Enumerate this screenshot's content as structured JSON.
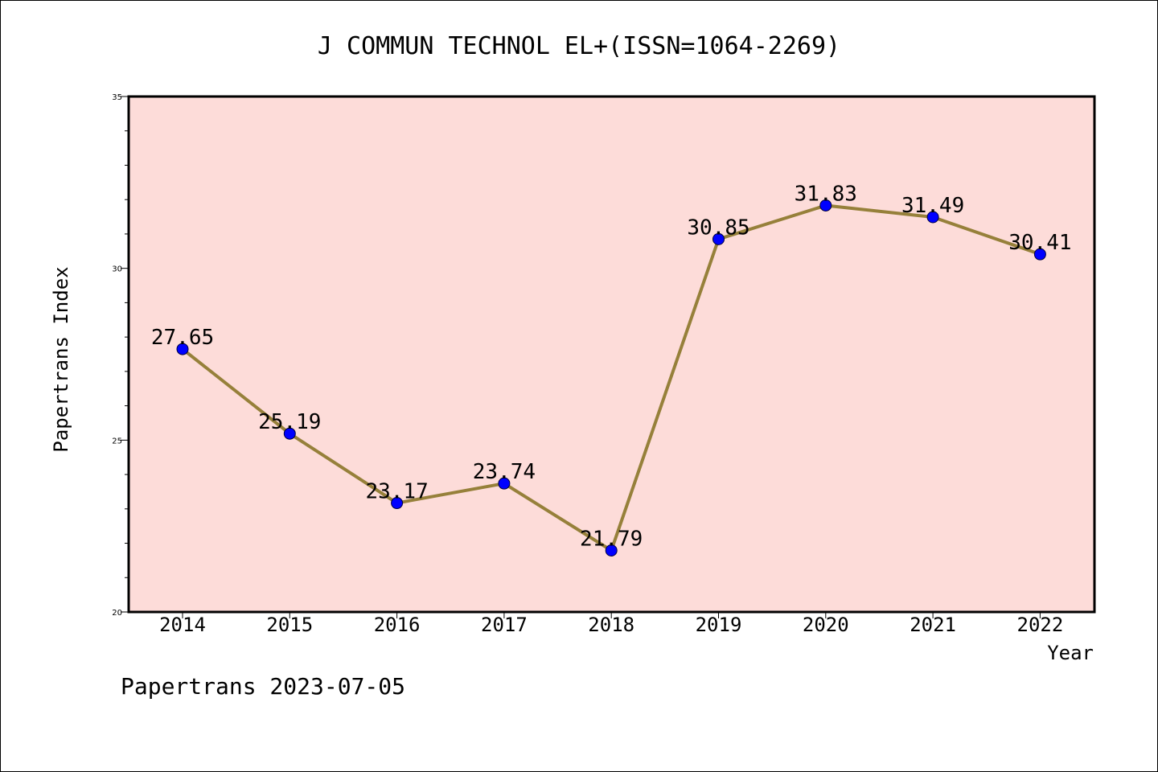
{
  "chart_data": {
    "type": "line",
    "title": "J COMMUN TECHNOL EL+(ISSN=1064-2269)",
    "xlabel": "Year",
    "ylabel": "Papertrans Index",
    "categories": [
      "2014",
      "2015",
      "2016",
      "2017",
      "2018",
      "2019",
      "2020",
      "2021",
      "2022"
    ],
    "values": [
      27.65,
      25.19,
      23.17,
      23.74,
      21.79,
      30.85,
      31.83,
      31.49,
      30.41
    ],
    "data_labels": [
      "27.65",
      "25.19",
      "23.17",
      "23.74",
      "21.79",
      "30.85",
      "31.83",
      "31.49",
      "30.41"
    ],
    "ylim": [
      20,
      35
    ],
    "yticks": [
      "20",
      "25",
      "30",
      "35"
    ],
    "grid": false,
    "legend": "none",
    "colors": {
      "plot_background": "#fddcd9",
      "line": "#96803a",
      "marker": "#0000ff"
    }
  },
  "footer": {
    "text": "Papertrans 2023-07-05"
  }
}
